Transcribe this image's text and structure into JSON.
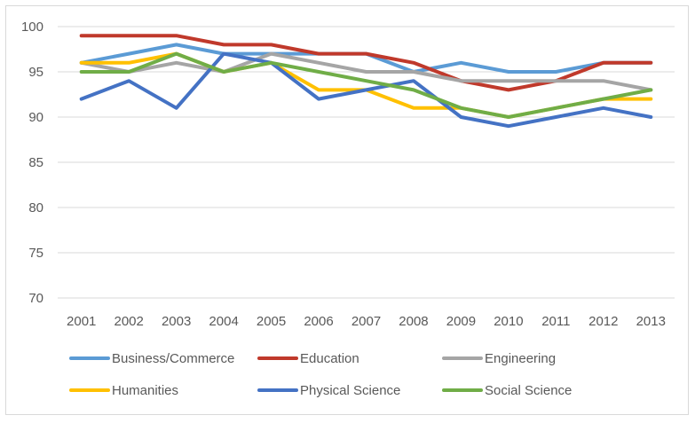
{
  "chart_data": {
    "type": "line",
    "title": "",
    "xlabel": "",
    "ylabel": "",
    "ylim": [
      70,
      100
    ],
    "yticks": [
      70,
      75,
      80,
      85,
      90,
      95,
      100
    ],
    "categories": [
      "2001",
      "2002",
      "2003",
      "2004",
      "2005",
      "2006",
      "2007",
      "2008",
      "2009",
      "2010",
      "2011",
      "2012",
      "2013"
    ],
    "grid": "horizontal",
    "legend_position": "bottom",
    "series": [
      {
        "name": "Business/Commerce",
        "color": "#5B9BD5",
        "values": [
          96,
          97,
          98,
          97,
          97,
          97,
          97,
          95,
          96,
          95,
          95,
          96,
          96
        ]
      },
      {
        "name": "Education",
        "color": "#C0392B",
        "values": [
          99,
          99,
          99,
          98,
          98,
          97,
          97,
          96,
          94,
          93,
          94,
          96,
          96
        ]
      },
      {
        "name": "Engineering",
        "color": "#A5A5A5",
        "values": [
          96,
          95,
          96,
          95,
          97,
          96,
          95,
          95,
          94,
          94,
          94,
          94,
          93
        ]
      },
      {
        "name": "Humanities",
        "color": "#FFC000",
        "values": [
          96,
          96,
          97,
          95,
          96,
          93,
          93,
          91,
          91,
          90,
          91,
          92,
          92
        ]
      },
      {
        "name": "Physical Science",
        "color": "#4472C4",
        "values": [
          92,
          94,
          91,
          97,
          96,
          92,
          93,
          94,
          90,
          89,
          90,
          91,
          90
        ]
      },
      {
        "name": "Social Science",
        "color": "#70AD47",
        "values": [
          95,
          95,
          97,
          95,
          96,
          95,
          94,
          93,
          91,
          90,
          91,
          92,
          93
        ]
      }
    ]
  }
}
